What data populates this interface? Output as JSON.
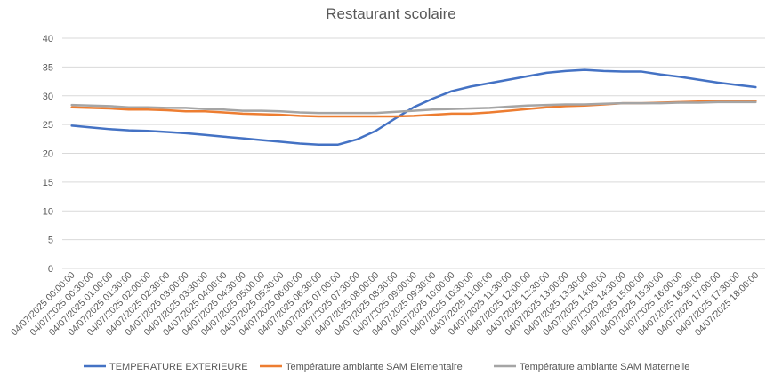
{
  "chart_data": {
    "type": "line",
    "title": "Restaurant scolaire",
    "xlabel": "",
    "ylabel": "",
    "ylim": [
      0,
      40
    ],
    "ytick_step": 5,
    "grid": true,
    "legend_placement": "bottom",
    "x": [
      "04/07/2025 00:00:00",
      "04/07/2025 00:30:00",
      "04/07/2025 01:00:00",
      "04/07/2025 01:30:00",
      "04/07/2025 02:00:00",
      "04/07/2025 02:30:00",
      "04/07/2025 03:00:00",
      "04/07/2025 03:30:00",
      "04/07/2025 04:00:00",
      "04/07/2025 04:30:00",
      "04/07/2025 05:00:00",
      "04/07/2025 05:30:00",
      "04/07/2025 06:00:00",
      "04/07/2025 06:30:00",
      "04/07/2025 07:00:00",
      "04/07/2025 07:30:00",
      "04/07/2025 08:00:00",
      "04/07/2025 08:30:00",
      "04/07/2025 09:00:00",
      "04/07/2025 09:30:00",
      "04/07/2025 10:00:00",
      "04/07/2025 10:30:00",
      "04/07/2025 11:00:00",
      "04/07/2025 11:30:00",
      "04/07/2025 12:00:00",
      "04/07/2025 12:30:00",
      "04/07/2025 13:00:00",
      "04/07/2025 13:30:00",
      "04/07/2025 14:00:00",
      "04/07/2025 14:30:00",
      "04/07/2025 15:00:00",
      "04/07/2025 15:30:00",
      "04/07/2025 16:00:00",
      "04/07/2025 16:30:00",
      "04/07/2025 17:00:00",
      "04/07/2025 17:30:00",
      "04/07/2025 18:00:00"
    ],
    "series": [
      {
        "name": "TEMPERATURE EXTERIEURE",
        "color": "#4472c4",
        "values": [
          24.8,
          24.5,
          24.2,
          24.0,
          23.9,
          23.7,
          23.5,
          23.2,
          22.9,
          22.6,
          22.3,
          22.0,
          21.7,
          21.5,
          21.5,
          22.4,
          23.9,
          26.0,
          28.0,
          29.5,
          30.8,
          31.6,
          32.2,
          32.8,
          33.4,
          34.0,
          34.3,
          34.5,
          34.3,
          34.2,
          34.2,
          33.7,
          33.3,
          32.8,
          32.3,
          31.9,
          31.5
        ]
      },
      {
        "name": "Température ambiante SAM Elementaire",
        "color": "#ed7d31",
        "values": [
          28.0,
          27.9,
          27.8,
          27.6,
          27.6,
          27.5,
          27.3,
          27.3,
          27.1,
          26.9,
          26.8,
          26.7,
          26.5,
          26.4,
          26.4,
          26.4,
          26.4,
          26.4,
          26.5,
          26.7,
          26.9,
          26.9,
          27.1,
          27.4,
          27.7,
          28.0,
          28.2,
          28.3,
          28.5,
          28.7,
          28.7,
          28.8,
          28.9,
          29.0,
          29.1,
          29.1,
          29.1
        ]
      },
      {
        "name": "Température ambiante SAM Maternelle",
        "color": "#a5a5a5",
        "values": [
          28.4,
          28.3,
          28.2,
          28.0,
          28.0,
          27.9,
          27.9,
          27.7,
          27.6,
          27.4,
          27.4,
          27.3,
          27.1,
          27.0,
          27.0,
          27.0,
          27.0,
          27.2,
          27.4,
          27.6,
          27.7,
          27.8,
          27.9,
          28.1,
          28.3,
          28.4,
          28.5,
          28.5,
          28.6,
          28.7,
          28.7,
          28.7,
          28.8,
          28.8,
          28.9,
          28.9,
          28.9
        ]
      }
    ]
  }
}
